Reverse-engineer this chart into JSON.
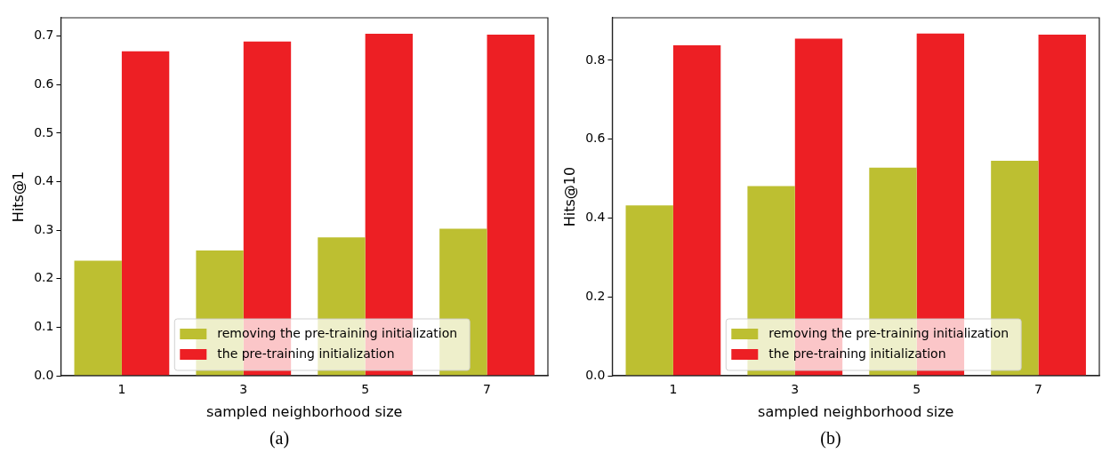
{
  "chart_data": [
    {
      "type": "bar",
      "xlabel": "sampled neighborhood size",
      "ylabel": "Hits@1",
      "categories": [
        "1",
        "3",
        "5",
        "7"
      ],
      "series": [
        {
          "name": "removing the pre-training initialization",
          "color": "#bdbf31",
          "values": [
            0.237,
            0.258,
            0.285,
            0.303
          ]
        },
        {
          "name": "the pre-training initialization",
          "color": "#ed1f24",
          "values": [
            0.669,
            0.689,
            0.705,
            0.703
          ]
        }
      ],
      "ylim": [
        0,
        0.738
      ],
      "yticks": [
        {
          "value": 0,
          "label": "0.0"
        },
        0.1,
        0.2,
        0.3,
        0.4,
        0.5,
        0.6,
        0.7
      ],
      "grid": false,
      "legend": "bottom",
      "annotations": [
        "(a)"
      ]
    },
    {
      "type": "bar",
      "xlabel": "sampled neighborhood size",
      "ylabel": "Hits@10",
      "categories": [
        "1",
        "3",
        "5",
        "7"
      ],
      "series": [
        {
          "name": "removing the pre-training initialization",
          "color": "#bdbf31",
          "values": [
            0.432,
            0.481,
            0.528,
            0.545
          ]
        },
        {
          "name": "the pre-training initialization",
          "color": "#ed1f24",
          "values": [
            0.838,
            0.855,
            0.868,
            0.865
          ]
        }
      ],
      "ylim": [
        0,
        0.908
      ],
      "yticks": [
        {
          "value": 0,
          "label": "0.0"
        },
        0.2,
        0.4,
        0.6,
        0.8
      ],
      "grid": false,
      "legend": "bottom",
      "annotations": [
        "(b)"
      ]
    }
  ]
}
